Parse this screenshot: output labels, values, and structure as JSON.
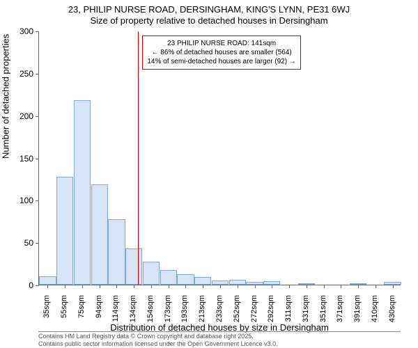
{
  "chart": {
    "type": "histogram",
    "title_line1": "23, PHILIP NURSE ROAD, DERSINGHAM, KING'S LYNN, PE31 6WJ",
    "title_line2": "Size of property relative to detached houses in Dersingham",
    "y_axis_label": "Number of detached properties",
    "x_axis_label": "Distribution of detached houses by size in Dersingham",
    "background_color": "#ffffff",
    "grid_color": "#666666",
    "bar_fill_color": "#d6e4f5",
    "bar_border_color": "#7fa8d9",
    "vline_color": "#cc0000",
    "annotation_border_color": "#cc0000",
    "ylim": [
      0,
      300
    ],
    "ytick_step": 50,
    "y_ticks": [
      0,
      50,
      100,
      150,
      200,
      250,
      300
    ],
    "x_tick_labels": [
      "35sqm",
      "55sqm",
      "75sqm",
      "94sqm",
      "114sqm",
      "134sqm",
      "154sqm",
      "173sqm",
      "193sqm",
      "213sqm",
      "233sqm",
      "252sqm",
      "272sqm",
      "292sqm",
      "311sqm",
      "331sqm",
      "351sqm",
      "371sqm",
      "391sqm",
      "410sqm",
      "430sqm"
    ],
    "bars": [
      10,
      127,
      218,
      118,
      77,
      43,
      27,
      17,
      12,
      9,
      5,
      6,
      3,
      4,
      0,
      2,
      0,
      0,
      1,
      0,
      3
    ],
    "vline_bar_index": 5.75,
    "annotation": {
      "line1": "23 PHILIP NURSE ROAD: 141sqm",
      "line2": "← 86% of detached houses are smaller (564)",
      "line3": "14% of semi-detached houses are larger (92) →"
    },
    "footer_line1": "Contains HM Land Registry data © Crown copyright and database right 2025.",
    "footer_line2": "Contains public sector information licensed under the Open Government Licence v3.0.",
    "title_fontsize": 13,
    "axis_label_fontsize": 13,
    "tick_fontsize": 12,
    "x_tick_fontsize": 11,
    "annotation_fontsize": 10,
    "footer_fontsize": 9
  }
}
